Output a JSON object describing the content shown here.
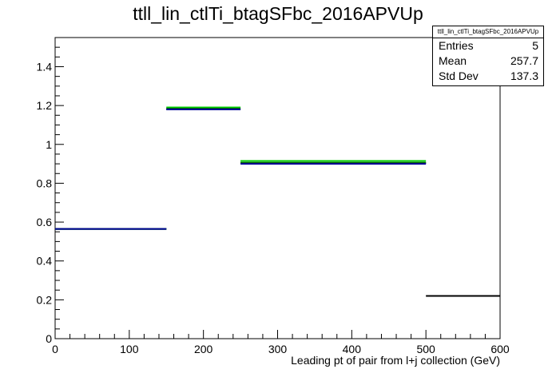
{
  "chart_data": {
    "type": "step-histogram",
    "title": "ttll_lin_ctlTi_btagSFbc_2016APVUp",
    "xlabel": "Leading pt of pair from l+j collection (GeV)",
    "ylabel": "",
    "xlim": [
      0,
      600
    ],
    "ylim": [
      0,
      1.55
    ],
    "x_ticks": [
      0,
      100,
      200,
      300,
      400,
      500,
      600
    ],
    "y_ticks": [
      0,
      0.2,
      0.4,
      0.6,
      0.8,
      1,
      1.2,
      1.4
    ],
    "x_tick_labels": [
      "0",
      "100",
      "200",
      "300",
      "400",
      "500",
      "600"
    ],
    "y_tick_labels": [
      "0",
      "0.2",
      "0.4",
      "0.6",
      "0.8",
      "1",
      "1.2",
      "1.4"
    ],
    "bins": [
      {
        "x0": 0,
        "x1": 150
      },
      {
        "x0": 150,
        "x1": 250
      },
      {
        "x0": 250,
        "x1": 500
      },
      {
        "x0": 500,
        "x1": 600
      }
    ],
    "series": [
      {
        "color": "#000000",
        "values": [
          0.565,
          1.185,
          0.905,
          0.22
        ]
      },
      {
        "color": "#00cc00",
        "values": [
          0.565,
          1.19,
          0.915,
          null
        ]
      },
      {
        "color": "#006600",
        "values": [
          0.565,
          1.18,
          0.905,
          null
        ]
      },
      {
        "color": "#000099",
        "values": [
          0.565,
          1.18,
          0.9,
          null
        ]
      }
    ],
    "grid": false,
    "legend": "none"
  },
  "stats_box": {
    "name": "ttll_lin_ctlTi_btagSFbc_2016APVUp",
    "rows": [
      {
        "label": "Entries",
        "value": "5"
      },
      {
        "label": "Mean",
        "value": "257.7"
      },
      {
        "label": "Std Dev",
        "value": "137.3"
      }
    ]
  }
}
